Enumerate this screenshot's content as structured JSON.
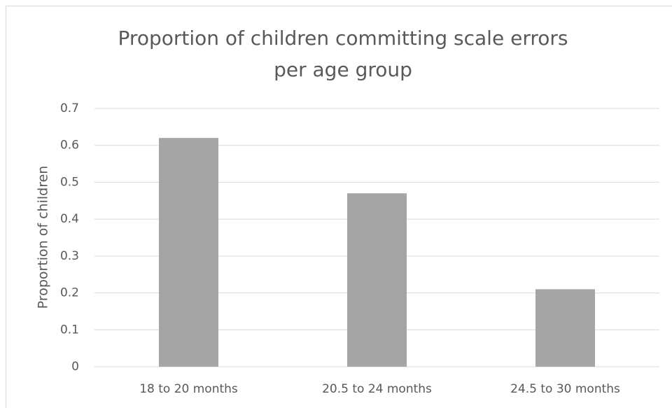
{
  "chart_data": {
    "type": "bar",
    "title": [
      "Proportion of children committing scale errors",
      "per age group"
    ],
    "y_label": "Proportion of children",
    "categories": [
      "18 to 20 months",
      "20.5 to 24 months",
      "24.5 to 30 months"
    ],
    "values": [
      0.62,
      0.47,
      0.21
    ],
    "color": "#a5a5a5",
    "ylim": [
      0,
      0.7
    ],
    "yticks": [
      0,
      0.1,
      0.2,
      0.3,
      0.4,
      0.5,
      0.6,
      0.7
    ],
    "grid": true
  }
}
